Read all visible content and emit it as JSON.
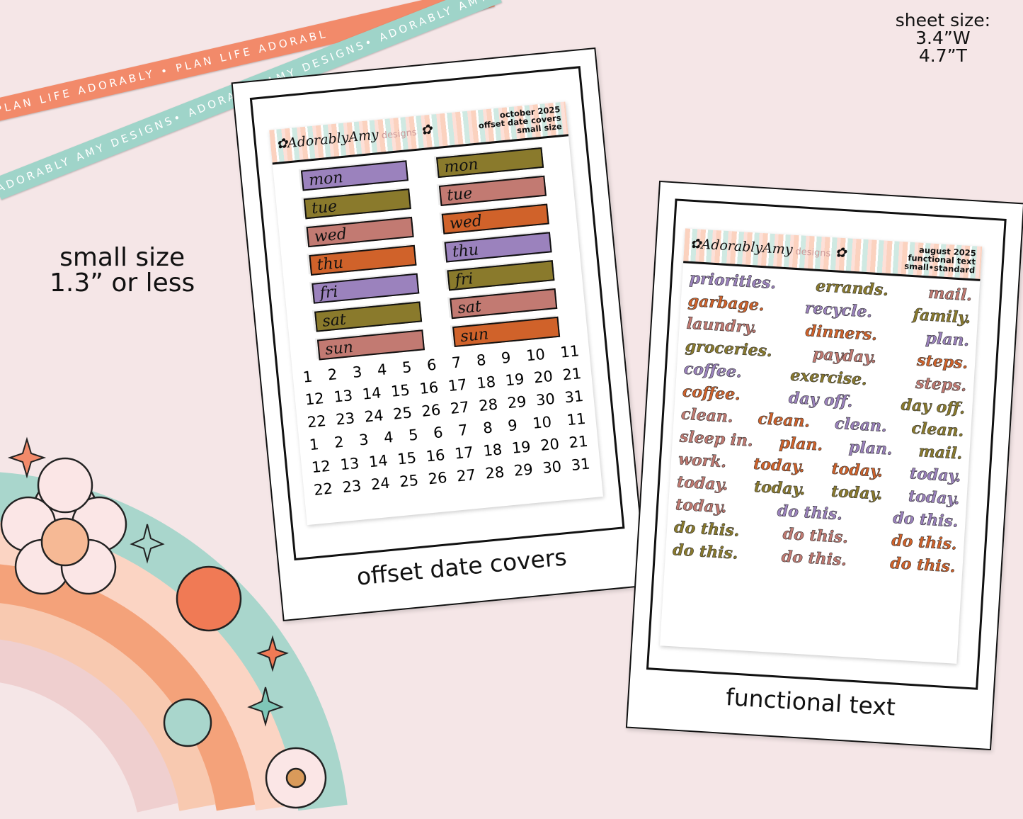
{
  "ribbons": {
    "orange": "PLAN LIFE ADORABLY • PLAN LIFE ADORABLY • PLAN LIFE ADORABLY •",
    "teal": "ADORABLY AMY DESIGNS• ADORABLY AMY DESIGNS• ADORABLY AMY DESIGNS•"
  },
  "sheet_size": {
    "label": "sheet size:",
    "width": "3.4”W",
    "height": "4.7”T"
  },
  "small_size": {
    "line1": "small size",
    "line2": "1.3” or less"
  },
  "colors": {
    "purple": "#9b82bd",
    "olive": "#8a7a2c",
    "rose": "#c27a72",
    "orange": "#d0622a",
    "background": "#f5e6e7"
  },
  "left_card": {
    "label": "offset date covers",
    "logo": {
      "script": "AdorablyAmy",
      "suffix": "designs"
    },
    "header": [
      "october 2025",
      "offset date covers",
      "small size"
    ],
    "covers": [
      [
        {
          "day": "mon",
          "color": "purple"
        },
        {
          "day": "tue",
          "color": "olive"
        },
        {
          "day": "wed",
          "color": "rose"
        },
        {
          "day": "thu",
          "color": "orange"
        },
        {
          "day": "fri",
          "color": "purple"
        },
        {
          "day": "sat",
          "color": "olive"
        },
        {
          "day": "sun",
          "color": "rose"
        }
      ],
      [
        {
          "day": "mon",
          "color": "olive"
        },
        {
          "day": "tue",
          "color": "rose"
        },
        {
          "day": "wed",
          "color": "orange"
        },
        {
          "day": "thu",
          "color": "purple"
        },
        {
          "day": "fri",
          "color": "olive"
        },
        {
          "day": "sat",
          "color": "rose"
        },
        {
          "day": "sun",
          "color": "orange"
        }
      ]
    ],
    "date_rows": [
      [
        "1",
        "2",
        "3",
        "4",
        "5",
        "6",
        "7",
        "8",
        "9",
        "10",
        "11"
      ],
      [
        "12",
        "13",
        "14",
        "15",
        "16",
        "17",
        "18",
        "19",
        "20",
        "21"
      ],
      [
        "22",
        "23",
        "24",
        "25",
        "26",
        "27",
        "28",
        "29",
        "30",
        "31"
      ],
      [
        "1",
        "2",
        "3",
        "4",
        "5",
        "6",
        "7",
        "8",
        "9",
        "10",
        "11"
      ],
      [
        "12",
        "13",
        "14",
        "15",
        "16",
        "17",
        "18",
        "19",
        "20",
        "21"
      ],
      [
        "22",
        "23",
        "24",
        "25",
        "26",
        "27",
        "28",
        "29",
        "30",
        "31"
      ]
    ]
  },
  "right_card": {
    "label": "functional text",
    "logo": {
      "script": "AdorablyAmy",
      "suffix": "designs"
    },
    "header": [
      "august 2025",
      "functional text",
      "small•standard"
    ],
    "word_rows": [
      [
        {
          "t": "priorities.",
          "c": "purple"
        },
        {
          "t": "errands.",
          "c": "olive"
        },
        {
          "t": "mail.",
          "c": "rose"
        }
      ],
      [
        {
          "t": "garbage.",
          "c": "orange"
        },
        {
          "t": "recycle.",
          "c": "purple"
        },
        {
          "t": "family.",
          "c": "olive"
        }
      ],
      [
        {
          "t": "laundry.",
          "c": "rose"
        },
        {
          "t": "dinners.",
          "c": "orange"
        },
        {
          "t": "plan.",
          "c": "purple"
        }
      ],
      [
        {
          "t": "groceries.",
          "c": "olive"
        },
        {
          "t": "payday.",
          "c": "rose"
        },
        {
          "t": "steps.",
          "c": "orange"
        }
      ],
      [
        {
          "t": "coffee.",
          "c": "purple"
        },
        {
          "t": "exercise.",
          "c": "olive"
        },
        {
          "t": "steps.",
          "c": "rose"
        }
      ],
      [
        {
          "t": "coffee.",
          "c": "orange"
        },
        {
          "t": "day off.",
          "c": "purple"
        },
        {
          "t": "day off.",
          "c": "olive"
        }
      ],
      [
        {
          "t": "clean.",
          "c": "rose"
        },
        {
          "t": "clean.",
          "c": "orange"
        },
        {
          "t": "clean.",
          "c": "purple"
        },
        {
          "t": "clean.",
          "c": "olive"
        }
      ],
      [
        {
          "t": "sleep in.",
          "c": "rose"
        },
        {
          "t": "plan.",
          "c": "orange"
        },
        {
          "t": "plan.",
          "c": "purple"
        },
        {
          "t": "mail.",
          "c": "olive"
        }
      ],
      [
        {
          "t": "work.",
          "c": "rose"
        },
        {
          "t": "today.",
          "c": "orange"
        },
        {
          "t": "today.",
          "c": "orange"
        },
        {
          "t": "today.",
          "c": "purple"
        }
      ],
      [
        {
          "t": "today.",
          "c": "rose"
        },
        {
          "t": "today.",
          "c": "olive"
        },
        {
          "t": "today.",
          "c": "olive"
        },
        {
          "t": "today.",
          "c": "purple"
        }
      ],
      [
        {
          "t": "today.",
          "c": "rose"
        },
        {
          "t": "do this.",
          "c": "purple"
        },
        {
          "t": "do this.",
          "c": "purple"
        }
      ],
      [
        {
          "t": "do this.",
          "c": "olive"
        },
        {
          "t": "do this.",
          "c": "rose"
        },
        {
          "t": "do this.",
          "c": "orange"
        }
      ],
      [
        {
          "t": "do this.",
          "c": "olive"
        },
        {
          "t": "do this.",
          "c": "rose"
        },
        {
          "t": "do this.",
          "c": "orange"
        }
      ]
    ]
  }
}
